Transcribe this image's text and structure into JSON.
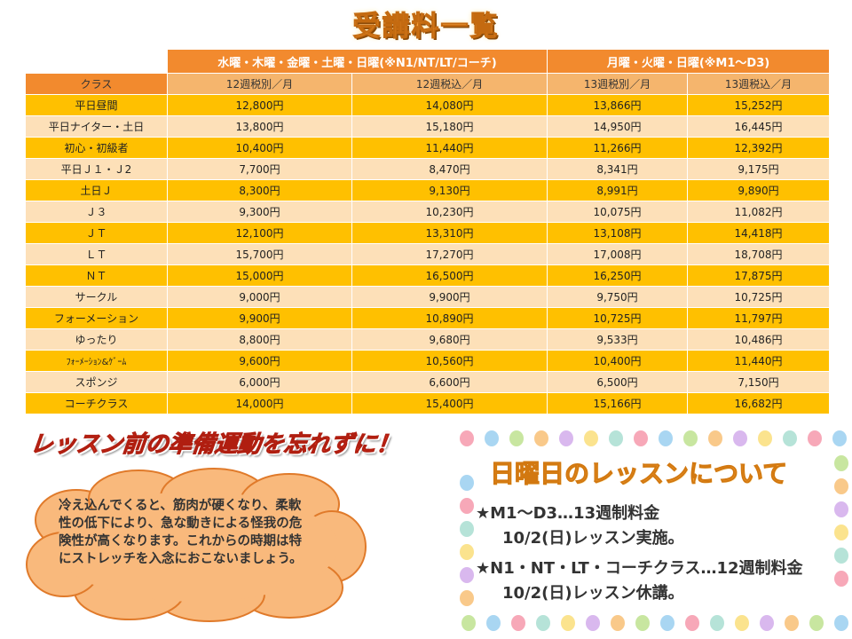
{
  "title": "受講料一覧",
  "table": {
    "group_headers": [
      "水曜・木曜・金曜・土曜・日曜(※N1/NT/LT/コーチ)",
      "月曜・火曜・日曜(※M1～D3)"
    ],
    "columns": [
      "クラス",
      "12週税別／月",
      "12週税込／月",
      "13週税別／月",
      "13週税込／月"
    ],
    "rows": [
      {
        "cls": "平日昼間",
        "v": [
          "12,800円",
          "14,080円",
          "13,866円",
          "15,252円"
        ]
      },
      {
        "cls": "平日ナイター・土日",
        "v": [
          "13,800円",
          "15,180円",
          "14,950円",
          "16,445円"
        ]
      },
      {
        "cls": "初心・初級者",
        "v": [
          "10,400円",
          "11,440円",
          "11,266円",
          "12,392円"
        ]
      },
      {
        "cls": "平日Ｊ１・Ｊ2",
        "v": [
          "7,700円",
          "8,470円",
          "8,341円",
          "9,175円"
        ]
      },
      {
        "cls": "土日Ｊ",
        "v": [
          "8,300円",
          "9,130円",
          "8,991円",
          "9,890円"
        ]
      },
      {
        "cls": "Ｊ３",
        "v": [
          "9,300円",
          "10,230円",
          "10,075円",
          "11,082円"
        ]
      },
      {
        "cls": "ＪＴ",
        "v": [
          "12,100円",
          "13,310円",
          "13,108円",
          "14,418円"
        ]
      },
      {
        "cls": "ＬＴ",
        "v": [
          "15,700円",
          "17,270円",
          "17,008円",
          "18,708円"
        ]
      },
      {
        "cls": "ＮＴ",
        "v": [
          "15,000円",
          "16,500円",
          "16,250円",
          "17,875円"
        ]
      },
      {
        "cls": "サークル",
        "v": [
          "9,000円",
          "9,900円",
          "9,750円",
          "10,725円"
        ]
      },
      {
        "cls": "フォーメーション",
        "v": [
          "9,900円",
          "10,890円",
          "10,725円",
          "11,797円"
        ]
      },
      {
        "cls": "ゆったり",
        "v": [
          "8,800円",
          "9,680円",
          "9,533円",
          "10,486円"
        ]
      },
      {
        "cls": "ﾌｫｰﾒｰｼｮﾝ&ｹﾞｰﾑ",
        "v": [
          "9,600円",
          "10,560円",
          "10,400円",
          "11,440円"
        ]
      },
      {
        "cls": "スポンジ",
        "v": [
          "6,000円",
          "6,600円",
          "6,500円",
          "7,150円"
        ]
      },
      {
        "cls": "コーチクラス",
        "v": [
          "14,000円",
          "15,400円",
          "15,166円",
          "16,682円"
        ]
      }
    ]
  },
  "banner": "レッスン前の準備運動を忘れずに！",
  "cloud": {
    "lines": [
      "冷え込んでくると、筋肉が硬くなり、柔軟",
      "性の低下により、急な動きによる怪我の危",
      "険性が高くなります。これからの時期は特",
      "にストレッチを入念におこないましょう。"
    ]
  },
  "sunday": {
    "title": "日曜日のレッスンについて",
    "line1": "★M1～D3…13週制料金",
    "line2": "10/2(日)レッスン実施。",
    "line3": "★N1・NT・LT・コーチクラス…12週制料金",
    "line4": "10/2(日)レッスン休講。"
  },
  "colors": {
    "header_orange": "#f28a2e",
    "row_yellow": "#ffc000",
    "row_peach": "#fde0b8",
    "banner_red": "#e03520",
    "sunday_title_orange": "#f29c2e",
    "cloud_fill": "#f9b97c"
  }
}
